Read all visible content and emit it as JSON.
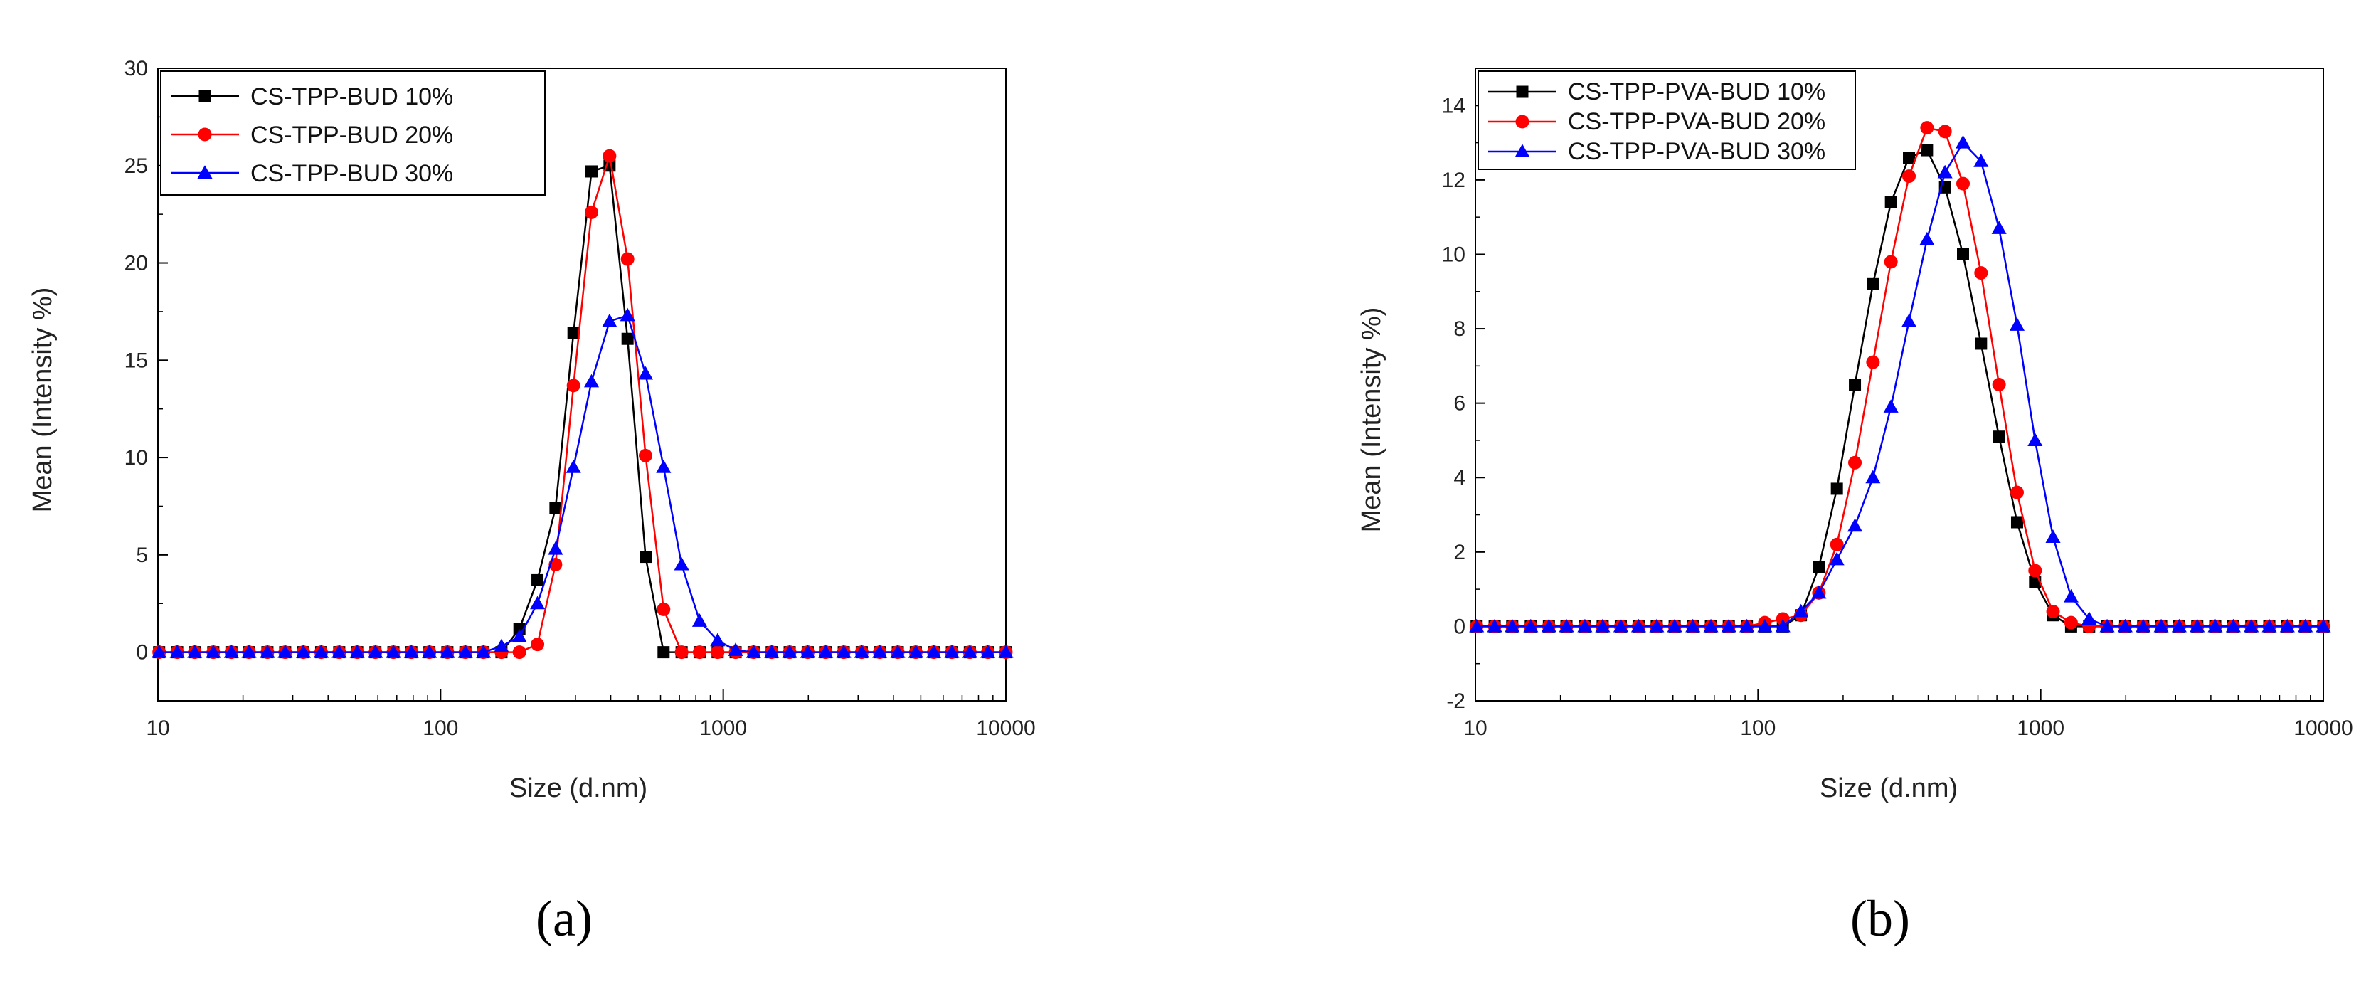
{
  "chart_data": [
    {
      "type": "line",
      "panel_label": "(a)",
      "xlabel": "Size (d.nm)",
      "ylabel": "Mean (Intensity %)",
      "x_scale": "log",
      "xlim": [
        10,
        10000
      ],
      "ylim": [
        -2.5,
        30
      ],
      "xticks": [
        "10",
        "100",
        "1000",
        "10000"
      ],
      "yticks": [
        "0",
        "5",
        "10",
        "15",
        "20",
        "25",
        "30"
      ],
      "legend_position": "top-left",
      "grid": false,
      "x": [
        10.1,
        11.7,
        13.5,
        15.7,
        18.2,
        21.0,
        24.4,
        28.2,
        32.7,
        37.8,
        43.8,
        50.7,
        58.8,
        68.1,
        78.8,
        91.3,
        105.7,
        122.4,
        141.8,
        164.2,
        190.1,
        220.2,
        255.0,
        295.3,
        342.0,
        396.1,
        458.7,
        531.2,
        615.1,
        712.4,
        825.0,
        955.4,
        1106,
        1281,
        1484,
        1718,
        1990,
        2305,
        2669,
        3091,
        3580,
        4145,
        4801,
        5560,
        6439,
        7456,
        8635,
        10000
      ],
      "series": [
        {
          "name": "CS-TPP-BUD 10%",
          "color": "#000000",
          "marker": "square",
          "values": [
            0,
            0,
            0,
            0,
            0,
            0,
            0,
            0,
            0,
            0,
            0,
            0,
            0,
            0,
            0,
            0,
            0,
            0,
            0,
            0,
            1.2,
            3.7,
            7.4,
            16.4,
            24.7,
            25.0,
            16.1,
            4.9,
            0,
            0,
            0,
            0,
            0,
            0,
            0,
            0,
            0,
            0,
            0,
            0,
            0,
            0,
            0,
            0,
            0,
            0,
            0,
            0
          ]
        },
        {
          "name": "CS-TPP-BUD 20%",
          "color": "#ff0000",
          "marker": "circle",
          "values": [
            0,
            0,
            0,
            0,
            0,
            0,
            0,
            0,
            0,
            0,
            0,
            0,
            0,
            0,
            0,
            0,
            0,
            0,
            0,
            0,
            0,
            0.4,
            4.5,
            13.7,
            22.6,
            25.5,
            20.2,
            10.1,
            2.2,
            0,
            0,
            0,
            0,
            0,
            0,
            0,
            0,
            0,
            0,
            0,
            0,
            0,
            0,
            0,
            0,
            0,
            0,
            0
          ]
        },
        {
          "name": "CS-TPP-BUD 30%",
          "color": "#0000ff",
          "marker": "triangle",
          "values": [
            0,
            0,
            0,
            0,
            0,
            0,
            0,
            0,
            0,
            0,
            0,
            0,
            0,
            0,
            0,
            0,
            0,
            0,
            0,
            0.3,
            0.8,
            2.5,
            5.3,
            9.5,
            13.9,
            17.0,
            17.3,
            14.3,
            9.5,
            4.5,
            1.6,
            0.6,
            0.1,
            0,
            0,
            0,
            0,
            0,
            0,
            0,
            0,
            0,
            0,
            0,
            0,
            0,
            0,
            0
          ]
        }
      ]
    },
    {
      "type": "line",
      "panel_label": "(b)",
      "xlabel": "Size (d.nm)",
      "ylabel": "Mean (Intensity %)",
      "x_scale": "log",
      "xlim": [
        10,
        10000
      ],
      "ylim": [
        -2,
        15
      ],
      "xticks": [
        "10",
        "100",
        "1000",
        "10000"
      ],
      "yticks": [
        "-2",
        "0",
        "2",
        "4",
        "6",
        "8",
        "10",
        "12",
        "14"
      ],
      "legend_position": "top-left",
      "grid": false,
      "x": [
        10.1,
        11.7,
        13.5,
        15.7,
        18.2,
        21.0,
        24.4,
        28.2,
        32.7,
        37.8,
        43.8,
        50.7,
        58.8,
        68.1,
        78.8,
        91.3,
        105.7,
        122.4,
        141.8,
        164.2,
        190.1,
        220.2,
        255.0,
        295.3,
        342.0,
        396.1,
        458.7,
        531.2,
        615.1,
        712.4,
        825.0,
        955.4,
        1106,
        1281,
        1484,
        1718,
        1990,
        2305,
        2669,
        3091,
        3580,
        4145,
        4801,
        5560,
        6439,
        7456,
        8635,
        10000
      ],
      "series": [
        {
          "name": "CS-TPP-PVA-BUD 10%",
          "color": "#000000",
          "marker": "square",
          "values": [
            0,
            0,
            0,
            0,
            0,
            0,
            0,
            0,
            0,
            0,
            0,
            0,
            0,
            0,
            0,
            0,
            0,
            0,
            0.3,
            1.6,
            3.7,
            6.5,
            9.2,
            11.4,
            12.6,
            12.8,
            11.8,
            10.0,
            7.6,
            5.1,
            2.8,
            1.2,
            0.3,
            0,
            0,
            0,
            0,
            0,
            0,
            0,
            0,
            0,
            0,
            0,
            0,
            0,
            0,
            0
          ]
        },
        {
          "name": "CS-TPP-PVA-BUD 20%",
          "color": "#ff0000",
          "marker": "circle",
          "values": [
            0,
            0,
            0,
            0,
            0,
            0,
            0,
            0,
            0,
            0,
            0,
            0,
            0,
            0,
            0,
            0,
            0.1,
            0.2,
            0.3,
            0.9,
            2.2,
            4.4,
            7.1,
            9.8,
            12.1,
            13.4,
            13.3,
            11.9,
            9.5,
            6.5,
            3.6,
            1.5,
            0.4,
            0.1,
            0,
            0,
            0,
            0,
            0,
            0,
            0,
            0,
            0,
            0,
            0,
            0,
            0,
            0
          ]
        },
        {
          "name": "CS-TPP-PVA-BUD 30%",
          "color": "#0000ff",
          "marker": "triangle",
          "values": [
            0,
            0,
            0,
            0,
            0,
            0,
            0,
            0,
            0,
            0,
            0,
            0,
            0,
            0,
            0,
            0,
            0,
            0,
            0.4,
            0.9,
            1.8,
            2.7,
            4.0,
            5.9,
            8.2,
            10.4,
            12.2,
            13.0,
            12.5,
            10.7,
            8.1,
            5.0,
            2.4,
            0.8,
            0.2,
            0,
            0,
            0,
            0,
            0,
            0,
            0,
            0,
            0,
            0,
            0,
            0,
            0
          ]
        }
      ]
    }
  ]
}
